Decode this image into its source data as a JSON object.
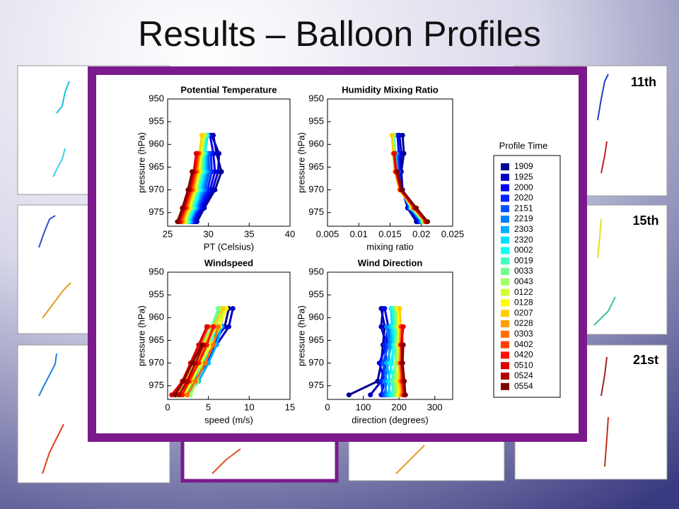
{
  "title": "Results – Balloon Profiles",
  "day_labels": [
    "11th",
    "15th",
    "21st"
  ],
  "legend": {
    "title": "Profile Time",
    "entries": [
      {
        "name": "1909",
        "color": "#00008f"
      },
      {
        "name": "1925",
        "color": "#0000c0"
      },
      {
        "name": "2000",
        "color": "#0000ef"
      },
      {
        "name": "2020",
        "color": "#0020ff"
      },
      {
        "name": "2151",
        "color": "#0050ff"
      },
      {
        "name": "2219",
        "color": "#0080ff"
      },
      {
        "name": "2303",
        "color": "#00b0ff"
      },
      {
        "name": "2320",
        "color": "#00e0ff"
      },
      {
        "name": "0002",
        "color": "#10ffef"
      },
      {
        "name": "0019",
        "color": "#40ffbf"
      },
      {
        "name": "0033",
        "color": "#70ff8f"
      },
      {
        "name": "0043",
        "color": "#a0ff60"
      },
      {
        "name": "0122",
        "color": "#d0ff30"
      },
      {
        "name": "0128",
        "color": "#ffff00"
      },
      {
        "name": "0207",
        "color": "#ffd000"
      },
      {
        "name": "0228",
        "color": "#ffa000"
      },
      {
        "name": "0303",
        "color": "#ff7000"
      },
      {
        "name": "0402",
        "color": "#ff4000"
      },
      {
        "name": "0420",
        "color": "#ff1000"
      },
      {
        "name": "0510",
        "color": "#df0000"
      },
      {
        "name": "0524",
        "color": "#b00000"
      },
      {
        "name": "0554",
        "color": "#800000"
      }
    ]
  },
  "chart_data": [
    {
      "type": "profile",
      "title": "Potential Temperature",
      "xlabel": "PT (Celsius)",
      "ylabel": "pressure (hPa)",
      "levels": [
        977,
        974,
        970,
        966,
        962,
        958
      ],
      "xlim": [
        25,
        40
      ],
      "xticks": [
        25,
        30,
        35,
        40
      ],
      "ylim": [
        950,
        978
      ],
      "yticks": [
        950,
        955,
        960,
        965,
        970,
        975
      ],
      "invert_y": true,
      "series": [
        {
          "values": [
            28.6,
            29.5,
            30.8,
            31.6,
            31.0,
            30.6
          ]
        },
        {
          "values": [
            28.4,
            29.3,
            30.5,
            31.2,
            31.3,
            30.4
          ]
        },
        {
          "values": [
            28.2,
            29.1,
            30.2,
            30.8,
            30.6,
            30.2
          ]
        },
        {
          "values": [
            28.0,
            28.9,
            29.9,
            30.4,
            30.3,
            null
          ]
        },
        {
          "values": [
            27.9,
            28.7,
            29.6,
            30.1,
            30.0,
            null
          ]
        },
        {
          "values": [
            27.8,
            28.5,
            29.4,
            29.9,
            29.8,
            null
          ]
        },
        {
          "values": [
            27.7,
            28.4,
            29.2,
            29.7,
            29.7,
            null
          ]
        },
        {
          "values": [
            27.6,
            28.3,
            29.0,
            29.5,
            29.6,
            29.9
          ]
        },
        {
          "values": [
            27.5,
            28.2,
            28.9,
            29.4,
            29.5,
            29.8
          ]
        },
        {
          "values": [
            27.4,
            28.0,
            28.7,
            29.2,
            29.4,
            29.7
          ]
        },
        {
          "values": [
            27.3,
            27.9,
            28.6,
            29.1,
            29.3,
            29.6
          ]
        },
        {
          "values": [
            27.2,
            27.8,
            28.5,
            29.0,
            29.2,
            29.5
          ]
        },
        {
          "values": [
            27.1,
            27.7,
            28.4,
            28.9,
            29.1,
            29.4
          ]
        },
        {
          "values": [
            27.0,
            27.6,
            28.3,
            28.8,
            29.0,
            29.3
          ]
        },
        {
          "values": [
            26.9,
            27.5,
            28.2,
            28.7,
            28.9,
            29.2
          ]
        },
        {
          "values": [
            26.8,
            27.4,
            28.1,
            28.6,
            28.9,
            null
          ]
        },
        {
          "values": [
            26.7,
            27.3,
            28.0,
            28.5,
            28.8,
            null
          ]
        },
        {
          "values": [
            26.6,
            27.2,
            27.9,
            28.4,
            28.7,
            null
          ]
        },
        {
          "values": [
            26.5,
            27.1,
            27.8,
            28.3,
            28.6,
            null
          ]
        },
        {
          "values": [
            26.4,
            27.0,
            27.7,
            28.2,
            28.5,
            null
          ]
        },
        {
          "values": [
            26.3,
            26.9,
            27.6,
            28.1,
            null,
            null
          ]
        },
        {
          "values": [
            26.2,
            26.8,
            27.5,
            28.0,
            null,
            null
          ]
        }
      ]
    },
    {
      "type": "profile",
      "title": "Humidity Mixing Ratio",
      "xlabel": "mixing ratio",
      "ylabel": "pressure (hPa)",
      "levels": [
        977,
        974,
        970,
        966,
        962,
        958
      ],
      "xlim": [
        0.005,
        0.025
      ],
      "xticks": [
        0.005,
        0.01,
        0.015,
        0.02,
        0.025
      ],
      "ylim": [
        950,
        978
      ],
      "yticks": [
        950,
        955,
        960,
        965,
        970,
        975
      ],
      "invert_y": true,
      "series": [
        {
          "values": [
            0.0192,
            0.0178,
            0.017,
            0.0168,
            0.0172,
            0.017
          ]
        },
        {
          "values": [
            0.0194,
            0.0179,
            0.0169,
            0.0166,
            0.0168,
            0.0165
          ]
        },
        {
          "values": [
            0.0196,
            0.018,
            0.0169,
            0.0165,
            0.0164,
            0.0162
          ]
        },
        {
          "values": [
            0.0198,
            0.0181,
            0.0168,
            0.0164,
            0.0162,
            null
          ]
        },
        {
          "values": [
            0.0199,
            0.0182,
            0.0168,
            0.0163,
            0.0161,
            null
          ]
        },
        {
          "values": [
            0.02,
            0.0183,
            0.0168,
            0.0162,
            0.016,
            null
          ]
        },
        {
          "values": [
            0.0201,
            0.0183,
            0.0167,
            0.0161,
            0.0159,
            null
          ]
        },
        {
          "values": [
            0.0202,
            0.0184,
            0.0167,
            0.0161,
            0.0158,
            0.0156
          ]
        },
        {
          "values": [
            0.0203,
            0.0184,
            0.0167,
            0.016,
            0.0158,
            0.0156
          ]
        },
        {
          "values": [
            0.0203,
            0.0185,
            0.0166,
            0.016,
            0.0157,
            0.0155
          ]
        },
        {
          "values": [
            0.0204,
            0.0185,
            0.0166,
            0.0159,
            0.0157,
            0.0155
          ]
        },
        {
          "values": [
            0.0204,
            0.0186,
            0.0166,
            0.0159,
            0.0156,
            0.0154
          ]
        },
        {
          "values": [
            0.0205,
            0.0186,
            0.0165,
            0.0158,
            0.0156,
            0.0154
          ]
        },
        {
          "values": [
            0.0205,
            0.0187,
            0.0165,
            0.0158,
            0.0155,
            0.0153
          ]
        },
        {
          "values": [
            0.0206,
            0.0187,
            0.0165,
            0.0158,
            0.0155,
            0.0153
          ]
        },
        {
          "values": [
            0.0206,
            0.0188,
            0.0166,
            0.0158,
            0.0155,
            null
          ]
        },
        {
          "values": [
            0.0207,
            0.0188,
            0.0166,
            0.0159,
            0.0156,
            null
          ]
        },
        {
          "values": [
            0.0207,
            0.0189,
            0.0167,
            0.0159,
            0.0156,
            null
          ]
        },
        {
          "values": [
            0.0208,
            0.019,
            0.0167,
            0.016,
            0.0157,
            null
          ]
        },
        {
          "values": [
            0.0208,
            0.019,
            0.0168,
            0.016,
            0.0157,
            null
          ]
        },
        {
          "values": [
            0.0209,
            0.0191,
            0.0168,
            0.0161,
            null,
            null
          ]
        },
        {
          "values": [
            0.021,
            0.0192,
            0.0169,
            0.0162,
            null,
            null
          ]
        }
      ]
    },
    {
      "type": "profile",
      "title": "Windspeed",
      "xlabel": "speed (m/s)",
      "ylabel": "pressure (hPa)",
      "levels": [
        977,
        974,
        970,
        966,
        962,
        958
      ],
      "xlim": [
        0,
        15
      ],
      "xticks": [
        0,
        5,
        10,
        15
      ],
      "ylim": [
        950,
        978
      ],
      "yticks": [
        950,
        955,
        960,
        965,
        970,
        975
      ],
      "invert_y": true,
      "series": [
        {
          "values": [
            1.0,
            2.5,
            4.0,
            5.5,
            7.0,
            7.5
          ]
        },
        {
          "values": [
            1.5,
            3.0,
            4.5,
            6.0,
            7.5,
            8.0
          ]
        },
        {
          "values": [
            1.2,
            2.8,
            4.2,
            5.2,
            6.5,
            7.0
          ]
        },
        {
          "values": [
            2.0,
            3.2,
            4.8,
            5.8,
            6.8,
            null
          ]
        },
        {
          "values": [
            0.8,
            2.2,
            3.8,
            5.0,
            6.2,
            null
          ]
        },
        {
          "values": [
            1.8,
            3.5,
            4.6,
            5.6,
            6.4,
            null
          ]
        },
        {
          "values": [
            2.5,
            3.8,
            5.0,
            6.0,
            6.6,
            null
          ]
        },
        {
          "values": [
            1.0,
            2.6,
            3.6,
            4.8,
            5.8,
            6.6
          ]
        },
        {
          "values": [
            2.2,
            3.0,
            4.4,
            5.2,
            6.0,
            6.8
          ]
        },
        {
          "values": [
            1.5,
            2.4,
            3.4,
            4.6,
            5.6,
            6.4
          ]
        },
        {
          "values": [
            0.6,
            2.0,
            3.2,
            4.2,
            5.4,
            6.2
          ]
        },
        {
          "values": [
            2.8,
            3.6,
            4.2,
            5.0,
            5.8,
            6.6
          ]
        },
        {
          "values": [
            1.2,
            2.6,
            3.8,
            4.8,
            6.0,
            7.0
          ]
        },
        {
          "values": [
            2.0,
            3.0,
            4.0,
            5.4,
            6.4,
            7.2
          ]
        },
        {
          "values": [
            0.8,
            2.2,
            3.4,
            4.4,
            5.6,
            6.8
          ]
        },
        {
          "values": [
            1.6,
            2.8,
            3.6,
            4.6,
            5.8,
            null
          ]
        },
        {
          "values": [
            2.4,
            3.4,
            4.6,
            5.6,
            6.2,
            null
          ]
        },
        {
          "values": [
            1.0,
            2.0,
            3.0,
            4.0,
            5.0,
            null
          ]
        },
        {
          "values": [
            1.8,
            2.6,
            3.8,
            4.8,
            5.6,
            null
          ]
        },
        {
          "values": [
            0.5,
            1.8,
            2.8,
            3.8,
            4.8,
            null
          ]
        },
        {
          "values": [
            1.4,
            2.4,
            3.4,
            4.4,
            null,
            null
          ]
        },
        {
          "values": [
            0.9,
            1.9,
            3.0,
            4.2,
            null,
            null
          ]
        }
      ]
    },
    {
      "type": "profile",
      "title": "Wind Direction",
      "xlabel": "direction (degrees)",
      "ylabel": "pressure (hPa)",
      "levels": [
        977,
        974,
        970,
        966,
        962,
        958
      ],
      "xlim": [
        0,
        350
      ],
      "xticks": [
        0,
        100,
        200,
        300
      ],
      "ylim": [
        950,
        978
      ],
      "yticks": [
        950,
        955,
        960,
        965,
        970,
        975
      ],
      "invert_y": true,
      "series": [
        {
          "values": [
            60,
            140,
            150,
            155,
            160,
            150
          ]
        },
        {
          "values": [
            120,
            150,
            160,
            165,
            150,
            155
          ]
        },
        {
          "values": [
            150,
            160,
            145,
            165,
            170,
            160
          ]
        },
        {
          "values": [
            155,
            150,
            165,
            160,
            170,
            null
          ]
        },
        {
          "values": [
            160,
            165,
            155,
            170,
            175,
            null
          ]
        },
        {
          "values": [
            165,
            160,
            170,
            175,
            165,
            null
          ]
        },
        {
          "values": [
            170,
            175,
            165,
            180,
            175,
            null
          ]
        },
        {
          "values": [
            175,
            170,
            180,
            185,
            180,
            178
          ]
        },
        {
          "values": [
            180,
            185,
            175,
            190,
            185,
            182
          ]
        },
        {
          "values": [
            185,
            180,
            190,
            188,
            192,
            186
          ]
        },
        {
          "values": [
            190,
            188,
            192,
            195,
            190,
            190
          ]
        },
        {
          "values": [
            195,
            192,
            190,
            198,
            196,
            192
          ]
        },
        {
          "values": [
            198,
            195,
            200,
            196,
            200,
            195
          ]
        },
        {
          "values": [
            200,
            198,
            202,
            205,
            200,
            198
          ]
        },
        {
          "values": [
            205,
            200,
            204,
            200,
            205,
            202
          ]
        },
        {
          "values": [
            208,
            205,
            200,
            206,
            204,
            null
          ]
        },
        {
          "values": [
            210,
            206,
            208,
            204,
            206,
            null
          ]
        },
        {
          "values": [
            212,
            208,
            205,
            210,
            208,
            null
          ]
        },
        {
          "values": [
            214,
            210,
            206,
            208,
            210,
            null
          ]
        },
        {
          "values": [
            215,
            212,
            210,
            206,
            212,
            null
          ]
        },
        {
          "values": [
            216,
            214,
            208,
            210,
            null,
            null
          ]
        },
        {
          "values": [
            218,
            215,
            210,
            212,
            null,
            null
          ]
        }
      ]
    }
  ]
}
